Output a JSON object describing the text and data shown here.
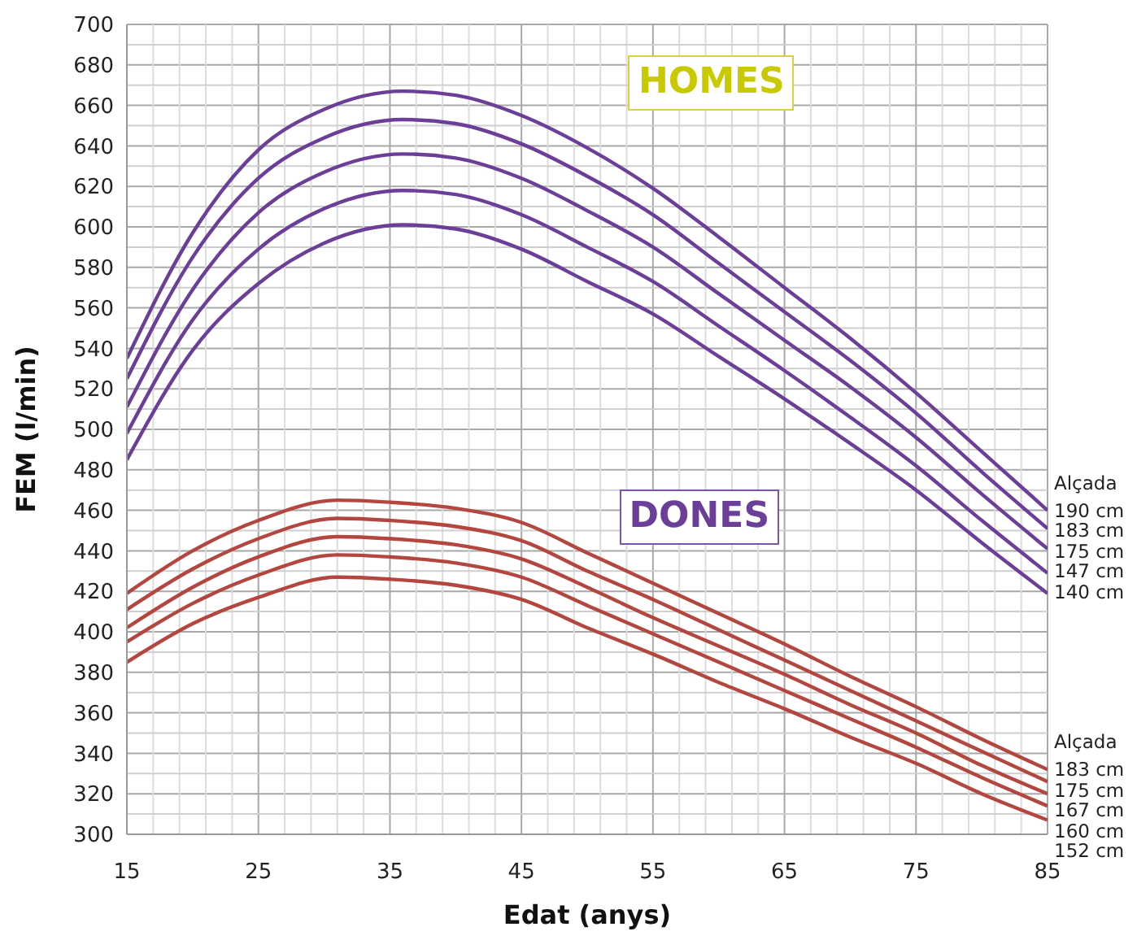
{
  "chart_data": {
    "type": "line",
    "xlabel": "Edat (anys)",
    "ylabel": "FEM (l/min)",
    "xlim": [
      15,
      85
    ],
    "xticks": [
      15,
      25,
      35,
      45,
      55,
      65,
      75,
      85
    ],
    "ylim": [
      300,
      700
    ],
    "yticks": [
      300,
      320,
      340,
      360,
      380,
      400,
      420,
      440,
      460,
      480,
      500,
      520,
      540,
      560,
      580,
      600,
      620,
      640,
      660,
      680,
      700
    ],
    "grid": true,
    "marker": "none",
    "line_style": "solid",
    "annotations": [
      "HOMES",
      "DONES",
      "Alçada",
      "Alçada"
    ],
    "series": [
      {
        "name": "190 cm",
        "color": "#6b3f98",
        "x": [
          15,
          20,
          25,
          30,
          36,
          40,
          45,
          50,
          55,
          60,
          65,
          70,
          75,
          80,
          85
        ],
        "values": [
          535,
          597,
          638,
          658,
          667,
          665,
          655,
          639,
          619,
          595,
          570,
          545,
          518,
          489,
          460
        ]
      },
      {
        "name": "183 cm",
        "color": "#6b3f98",
        "x": [
          15,
          20,
          25,
          30,
          36,
          40,
          45,
          50,
          55,
          60,
          65,
          70,
          75,
          80,
          85
        ],
        "values": [
          525,
          585,
          624,
          644,
          653,
          651,
          641,
          625,
          606,
          582,
          558,
          534,
          508,
          479,
          451
        ]
      },
      {
        "name": "175 cm",
        "color": "#6b3f98",
        "x": [
          15,
          20,
          25,
          30,
          36,
          40,
          45,
          50,
          55,
          60,
          65,
          70,
          75,
          80,
          85
        ],
        "values": [
          511,
          569,
          607,
          627,
          636,
          634,
          624,
          608,
          590,
          567,
          544,
          521,
          496,
          468,
          441
        ]
      },
      {
        "name": "147 cm",
        "color": "#6b3f98",
        "x": [
          15,
          20,
          25,
          30,
          36,
          40,
          45,
          50,
          55,
          60,
          65,
          70,
          75,
          80,
          85
        ],
        "values": [
          498,
          554,
          589,
          609,
          618,
          616,
          606,
          590,
          573,
          551,
          529,
          506,
          482,
          455,
          429
        ]
      },
      {
        "name": "140 cm",
        "color": "#6b3f98",
        "x": [
          15,
          20,
          25,
          30,
          36,
          40,
          45,
          50,
          55,
          60,
          65,
          70,
          75,
          80,
          85
        ],
        "values": [
          485,
          539,
          572,
          592,
          601,
          599,
          589,
          573,
          557,
          536,
          515,
          493,
          470,
          444,
          419
        ]
      },
      {
        "name": "183 cm",
        "color": "#b3463f",
        "x": [
          15,
          20,
          25,
          31,
          35,
          40,
          45,
          50,
          55,
          60,
          65,
          70,
          75,
          80,
          85
        ],
        "values": [
          419,
          440,
          455,
          465,
          464,
          461,
          454,
          439,
          424,
          409,
          394,
          378,
          363,
          347,
          332
        ]
      },
      {
        "name": "175 cm",
        "color": "#b3463f",
        "x": [
          15,
          20,
          25,
          31,
          35,
          40,
          45,
          50,
          55,
          60,
          65,
          70,
          75,
          80,
          85
        ],
        "values": [
          411,
          431,
          446,
          456,
          455,
          452,
          445,
          430,
          416,
          401,
          386,
          371,
          356,
          341,
          326
        ]
      },
      {
        "name": "167 cm",
        "color": "#b3463f",
        "x": [
          15,
          20,
          25,
          31,
          35,
          40,
          45,
          50,
          55,
          60,
          65,
          70,
          75,
          80,
          85
        ],
        "values": [
          402,
          422,
          437,
          447,
          446,
          443,
          436,
          422,
          407,
          393,
          379,
          364,
          350,
          334,
          320
        ]
      },
      {
        "name": "160 cm",
        "color": "#b3463f",
        "x": [
          15,
          20,
          25,
          31,
          35,
          40,
          45,
          50,
          55,
          60,
          65,
          70,
          75,
          80,
          85
        ],
        "values": [
          395,
          414,
          428,
          438,
          437,
          434,
          427,
          413,
          399,
          385,
          371,
          357,
          343,
          328,
          314
        ]
      },
      {
        "name": "152 cm",
        "color": "#b3463f",
        "x": [
          15,
          20,
          25,
          31,
          35,
          40,
          45,
          50,
          55,
          60,
          65,
          70,
          75,
          80,
          85
        ],
        "values": [
          385,
          404,
          417,
          427,
          426,
          423,
          416,
          402,
          389,
          375,
          362,
          348,
          335,
          320,
          307
        ]
      }
    ]
  }
}
